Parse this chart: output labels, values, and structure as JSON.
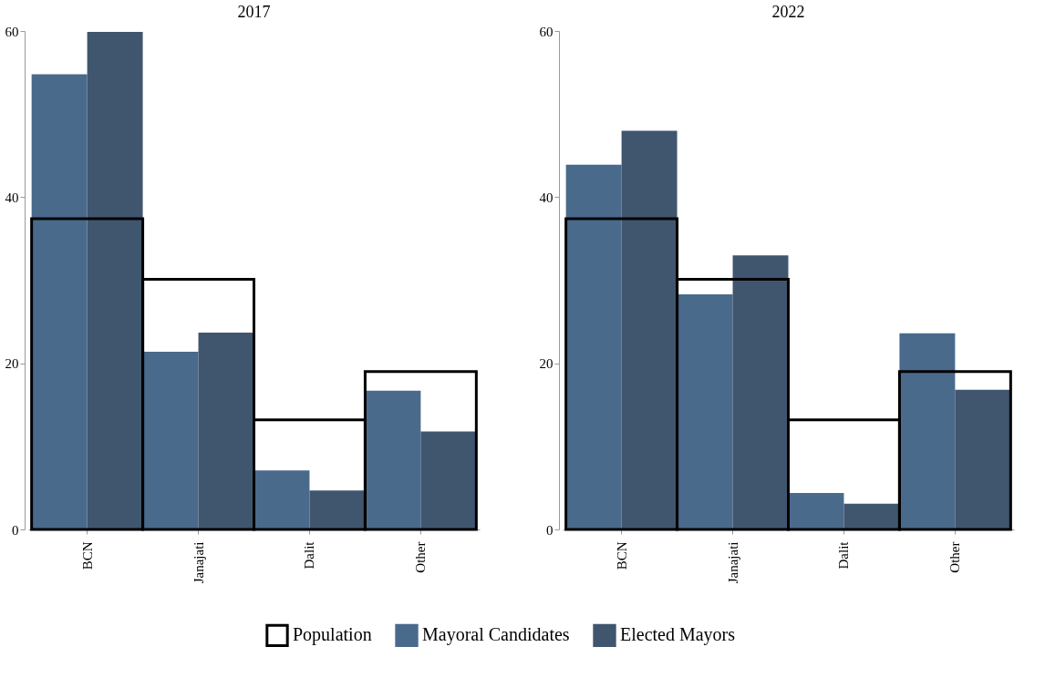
{
  "chart_data": [
    {
      "type": "bar",
      "title": "2017",
      "categories": [
        "BCN",
        "Janajati",
        "Dalit",
        "Other"
      ],
      "ylim": [
        0,
        60
      ],
      "yticks": [
        0,
        20,
        40,
        60
      ],
      "grid": false,
      "legend": "bottom",
      "series": [
        {
          "name": "Population",
          "type": "bar",
          "color": "#000000",
          "values": [
            37.4,
            30.1,
            13.2,
            19.0
          ]
        },
        {
          "name": "Mayoral Candidates",
          "type": "bar",
          "color": "#4a6a8c",
          "values": [
            54.8,
            21.4,
            7.1,
            16.7
          ]
        },
        {
          "name": "Elected Mayors",
          "type": "bar",
          "color": "#40566e",
          "values": [
            59.9,
            23.7,
            4.7,
            11.8
          ]
        }
      ]
    },
    {
      "type": "bar",
      "title": "2022",
      "categories": [
        "BCN",
        "Janajati",
        "Dalit",
        "Other"
      ],
      "ylim": [
        0,
        60
      ],
      "yticks": [
        0,
        20,
        40,
        60
      ],
      "grid": false,
      "legend": "bottom",
      "series": [
        {
          "name": "Population",
          "type": "bar",
          "color": "#000000",
          "values": [
            37.4,
            30.1,
            13.2,
            19.0
          ]
        },
        {
          "name": "Mayoral Candidates",
          "type": "bar",
          "color": "#4a6a8c",
          "values": [
            43.9,
            28.3,
            4.4,
            23.6
          ]
        },
        {
          "name": "Elected Mayors",
          "type": "bar",
          "color": "#40566e",
          "values": [
            48.0,
            33.0,
            3.1,
            16.8
          ]
        }
      ]
    }
  ]
}
